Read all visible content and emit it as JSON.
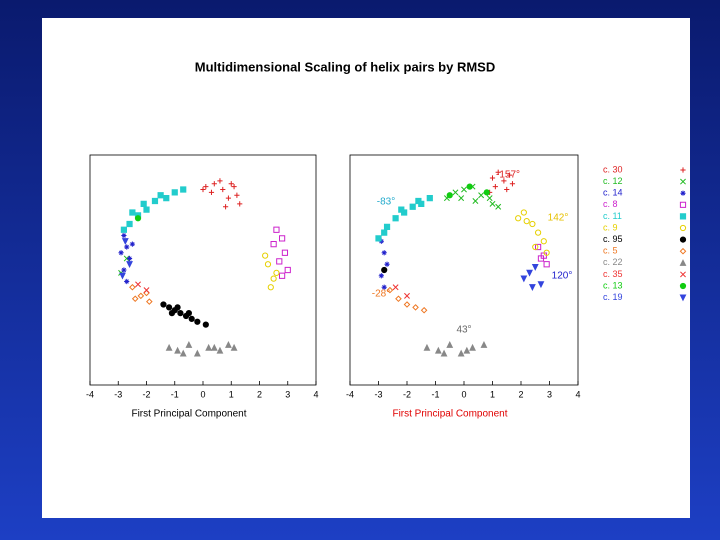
{
  "title": "Multidimensional Scaling of helix pairs by RMSD",
  "chart_data": [
    {
      "type": "scatter",
      "xlabel": "First Principal Component",
      "xlabel_color": "#000000",
      "xlim": [
        -4,
        4
      ],
      "ylim": [
        -4,
        4
      ],
      "xticks": [
        -4,
        -3,
        -2,
        -1,
        0,
        1,
        2,
        3,
        4
      ],
      "legend": false,
      "series": [
        {
          "name": "c. 30",
          "color": "#dd2222",
          "marker": "plus",
          "x": [
            0.1,
            0.4,
            0.7,
            1.0,
            1.2,
            0.3,
            0.9,
            1.1,
            0.6,
            0.0,
            1.3,
            0.8
          ],
          "y": [
            2.9,
            3.0,
            2.8,
            3.0,
            2.6,
            2.7,
            2.5,
            2.9,
            3.1,
            2.8,
            2.3,
            2.2
          ]
        },
        {
          "name": "c. 12",
          "color": "#22bb22",
          "marker": "cross",
          "x": [
            -2.7,
            -2.9
          ],
          "y": [
            0.4,
            -0.1
          ]
        },
        {
          "name": "c. 14",
          "color": "#2222cc",
          "marker": "star",
          "x": [
            -2.8,
            -2.7,
            -2.6,
            -2.8,
            -2.7,
            -2.5,
            -2.9
          ],
          "y": [
            1.2,
            0.8,
            0.4,
            0.0,
            -0.4,
            0.9,
            0.6
          ]
        },
        {
          "name": "c. 8",
          "color": "#cc22cc",
          "marker": "square-open",
          "x": [
            2.6,
            2.8,
            2.9,
            2.7,
            3.0,
            2.5,
            2.8
          ],
          "y": [
            1.4,
            1.1,
            0.6,
            0.3,
            0.0,
            0.9,
            -0.2
          ]
        },
        {
          "name": "c. 11",
          "color": "#22cccc",
          "marker": "square",
          "x": [
            -2.6,
            -2.3,
            -2.0,
            -1.7,
            -1.3,
            -1.0,
            -0.7,
            -2.5,
            -2.1,
            -1.5,
            -2.8
          ],
          "y": [
            1.6,
            1.9,
            2.1,
            2.4,
            2.5,
            2.7,
            2.8,
            2.0,
            2.3,
            2.6,
            1.4
          ]
        },
        {
          "name": "c. 9",
          "color": "#e6d000",
          "marker": "circle-open",
          "x": [
            2.3,
            2.5,
            2.4,
            2.6,
            2.2
          ],
          "y": [
            0.2,
            -0.3,
            -0.6,
            -0.1,
            0.5
          ]
        },
        {
          "name": "c. 95",
          "color": "#000000",
          "marker": "circle",
          "x": [
            -1.4,
            -1.2,
            -1.0,
            -0.8,
            -0.6,
            -0.4,
            -0.2,
            0.1,
            -0.9,
            -0.5,
            -1.1
          ],
          "y": [
            -1.2,
            -1.3,
            -1.4,
            -1.5,
            -1.6,
            -1.7,
            -1.8,
            -1.9,
            -1.3,
            -1.5,
            -1.5
          ]
        },
        {
          "name": "c. 5",
          "color": "#ee7722",
          "marker": "diamond-open",
          "x": [
            -2.5,
            -2.2,
            -1.9,
            -2.0,
            -2.4
          ],
          "y": [
            -0.6,
            -0.9,
            -1.1,
            -0.8,
            -1.0
          ]
        },
        {
          "name": "c. 22",
          "color": "#888888",
          "marker": "triangle",
          "x": [
            -1.2,
            -0.9,
            -0.5,
            -0.2,
            0.2,
            0.6,
            0.9,
            -0.7,
            0.4,
            1.1
          ],
          "y": [
            -2.7,
            -2.8,
            -2.6,
            -2.9,
            -2.7,
            -2.8,
            -2.6,
            -2.9,
            -2.7,
            -2.7
          ]
        },
        {
          "name": "c. 35",
          "color": "#ee3333",
          "marker": "cross",
          "x": [
            -2.3,
            -2.0
          ],
          "y": [
            -0.5,
            -0.7
          ]
        },
        {
          "name": "c. 13",
          "color": "#11cc11",
          "marker": "circle",
          "x": [
            -2.3
          ],
          "y": [
            1.8
          ]
        },
        {
          "name": "c. 19",
          "color": "#3344dd",
          "marker": "triangle-down",
          "x": [
            -2.75,
            -2.6,
            -2.85
          ],
          "y": [
            1.0,
            0.2,
            -0.2
          ]
        }
      ]
    },
    {
      "type": "scatter",
      "xlabel": "First Principal Component",
      "xlabel_color": "#e00000",
      "xlim": [
        -4,
        4
      ],
      "ylim": [
        -4,
        4
      ],
      "xticks": [
        -4,
        -3,
        -2,
        -1,
        0,
        1,
        2,
        3,
        4
      ],
      "legend": true,
      "annotations": [
        {
          "text": "-157°",
          "color": "#dd2222"
        },
        {
          "text": "-83°",
          "color": "#22aacc"
        },
        {
          "text": "142°",
          "color": "#e6c000"
        },
        {
          "text": "120°",
          "color": "#2222cc"
        },
        {
          "text": "-28°",
          "color": "#ee7722"
        },
        {
          "text": "43°",
          "color": "#666666"
        }
      ],
      "series": [
        {
          "name": "c. 30",
          "color": "#dd2222",
          "marker": "plus",
          "x": [
            1.0,
            1.2,
            1.4,
            1.6,
            1.1,
            1.5,
            1.7,
            0.9
          ],
          "y": [
            3.2,
            3.4,
            3.1,
            3.3,
            2.9,
            2.8,
            3.0,
            2.7
          ]
        },
        {
          "name": "c. 12",
          "color": "#22bb22",
          "marker": "cross",
          "x": [
            -0.6,
            -0.3,
            0.0,
            0.3,
            0.6,
            0.9,
            1.2,
            -0.1,
            0.4,
            1.0
          ],
          "y": [
            2.5,
            2.7,
            2.8,
            2.9,
            2.6,
            2.5,
            2.2,
            2.5,
            2.4,
            2.3
          ]
        },
        {
          "name": "c. 14",
          "color": "#2222cc",
          "marker": "star",
          "x": [
            -2.9,
            -2.8,
            -2.7,
            -2.9,
            -2.8
          ],
          "y": [
            1.0,
            0.6,
            0.2,
            -0.2,
            -0.6
          ]
        },
        {
          "name": "c. 8",
          "color": "#cc22cc",
          "marker": "square-open",
          "x": [
            2.6,
            2.8,
            2.9,
            2.7
          ],
          "y": [
            0.8,
            0.5,
            0.2,
            0.4
          ]
        },
        {
          "name": "c. 11",
          "color": "#22cccc",
          "marker": "square",
          "x": [
            -3.0,
            -2.7,
            -2.4,
            -2.1,
            -1.8,
            -1.5,
            -1.2,
            -2.8,
            -2.2,
            -1.6
          ],
          "y": [
            1.1,
            1.5,
            1.8,
            2.0,
            2.2,
            2.3,
            2.5,
            1.3,
            2.1,
            2.4
          ]
        },
        {
          "name": "c. 9",
          "color": "#e6d000",
          "marker": "circle-open",
          "x": [
            1.9,
            2.1,
            2.4,
            2.6,
            2.8,
            2.5,
            2.2,
            2.9
          ],
          "y": [
            1.8,
            2.0,
            1.6,
            1.3,
            1.0,
            0.8,
            1.7,
            0.6
          ]
        },
        {
          "name": "c. 95",
          "color": "#000000",
          "marker": "circle",
          "x": [
            -2.8
          ],
          "y": [
            0.0
          ]
        },
        {
          "name": "c. 5",
          "color": "#ee7722",
          "marker": "diamond-open",
          "x": [
            -2.6,
            -2.3,
            -2.0,
            -1.7,
            -1.4
          ],
          "y": [
            -0.7,
            -1.0,
            -1.2,
            -1.3,
            -1.4
          ]
        },
        {
          "name": "c. 22",
          "color": "#888888",
          "marker": "triangle",
          "x": [
            -1.3,
            -0.9,
            -0.5,
            -0.1,
            0.3,
            0.7,
            -0.7,
            0.1
          ],
          "y": [
            -2.7,
            -2.8,
            -2.6,
            -2.9,
            -2.7,
            -2.6,
            -2.9,
            -2.8
          ]
        },
        {
          "name": "c. 35",
          "color": "#ee3333",
          "marker": "cross",
          "x": [
            -2.4,
            -2.0
          ],
          "y": [
            -0.6,
            -0.9
          ]
        },
        {
          "name": "c. 13",
          "color": "#11cc11",
          "marker": "circle",
          "x": [
            -0.5,
            0.2,
            0.8
          ],
          "y": [
            2.6,
            2.9,
            2.7
          ]
        },
        {
          "name": "c. 19",
          "color": "#3344dd",
          "marker": "triangle-down",
          "x": [
            2.1,
            2.3,
            2.5,
            2.7,
            2.4
          ],
          "y": [
            -0.3,
            -0.1,
            0.1,
            -0.5,
            -0.6
          ]
        }
      ]
    }
  ]
}
